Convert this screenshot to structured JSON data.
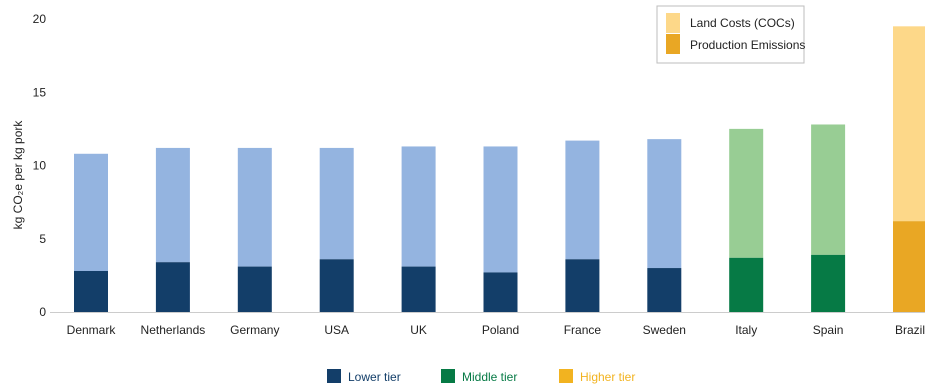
{
  "chart_data": {
    "type": "bar",
    "stacked": true,
    "categories": [
      "Denmark",
      "Netherlands",
      "Germany",
      "USA",
      "UK",
      "Poland",
      "France",
      "Sweden",
      "Italy",
      "Spain",
      "Brazil"
    ],
    "tiers": [
      "lower",
      "lower",
      "lower",
      "lower",
      "lower",
      "lower",
      "lower",
      "lower",
      "middle",
      "middle",
      "higher"
    ],
    "series": [
      {
        "name": "Production Emissions",
        "values": [
          2.8,
          3.4,
          3.1,
          3.6,
          3.1,
          2.7,
          3.6,
          3.0,
          3.7,
          3.9,
          6.2
        ]
      },
      {
        "name": "Land Costs (COCs)",
        "values": [
          8.0,
          7.8,
          8.1,
          7.6,
          8.2,
          8.6,
          8.1,
          8.8,
          8.8,
          8.9,
          13.3
        ]
      }
    ],
    "ylabel": "kg CO₂e per kg pork",
    "ylim": [
      0,
      20
    ],
    "yticks": [
      0,
      5,
      10,
      15,
      20
    ],
    "grid": false,
    "legend_position": "top-right",
    "colors": {
      "lower": {
        "production": "#133e69",
        "land": "#94b4e0"
      },
      "middle": {
        "production": "#067a45",
        "land": "#98cd94"
      },
      "higher": {
        "production": "#e9a724",
        "land": "#fdd889"
      }
    },
    "tier_legend": [
      {
        "label": "Lower tier",
        "color": "#133e69",
        "text_color": "#133e69"
      },
      {
        "label": "Middle tier",
        "color": "#067a45",
        "text_color": "#067a45"
      },
      {
        "label": "Higher tier",
        "color": "#f2b320",
        "text_color": "#f2b320"
      }
    ]
  }
}
